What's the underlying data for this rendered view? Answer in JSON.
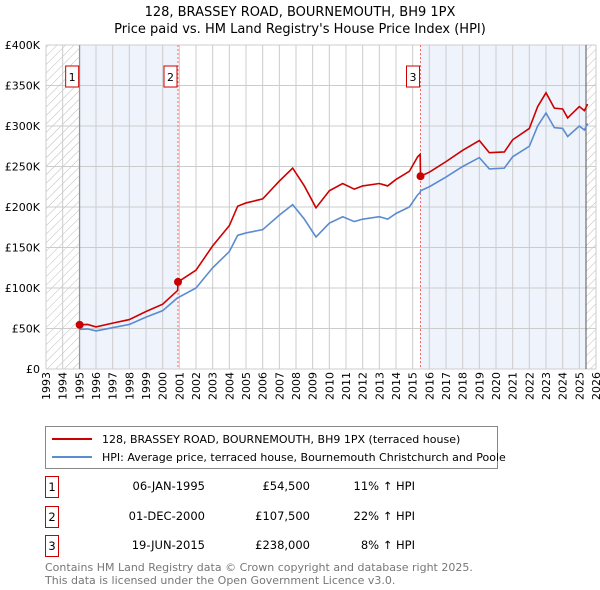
{
  "chart_data": {
    "type": "line",
    "title": "128, BRASSEY ROAD, BOURNEMOUTH, BH9 1PX",
    "subtitle": "Price paid vs. HM Land Registry's House Price Index (HPI)",
    "xlim": [
      1993,
      2026
    ],
    "ylim": [
      0,
      400000
    ],
    "y_ticks": [
      {
        "v": 0,
        "label": "£0"
      },
      {
        "v": 50000,
        "label": "£50K"
      },
      {
        "v": 100000,
        "label": "£100K"
      },
      {
        "v": 150000,
        "label": "£150K"
      },
      {
        "v": 200000,
        "label": "£200K"
      },
      {
        "v": 250000,
        "label": "£250K"
      },
      {
        "v": 300000,
        "label": "£300K"
      },
      {
        "v": 350000,
        "label": "£350K"
      },
      {
        "v": 400000,
        "label": "£400K"
      }
    ],
    "x_ticks": [
      "1993",
      "1994",
      "1995",
      "1996",
      "1997",
      "1998",
      "1999",
      "2000",
      "2001",
      "2002",
      "2003",
      "2004",
      "2005",
      "2006",
      "2007",
      "2008",
      "2009",
      "2010",
      "2011",
      "2012",
      "2013",
      "2014",
      "2015",
      "2016",
      "2017",
      "2018",
      "2019",
      "2020",
      "2021",
      "2022",
      "2023",
      "2024",
      "2025",
      "2026"
    ],
    "series": [
      {
        "name": "128, BRASSEY ROAD, BOURNEMOUTH, BH9 1PX (terraced house)",
        "color": "#cc0000",
        "x": [
          1995.02,
          1995.5,
          1996,
          1997,
          1998,
          1999,
          2000,
          2000.9,
          2000.92,
          2002,
          2003,
          2004,
          2004.5,
          2005,
          2006,
          2007,
          2007.8,
          2008.5,
          2009.2,
          2010,
          2010.8,
          2011.5,
          2012,
          2013,
          2013.5,
          2014,
          2014.8,
          2015.3,
          2015.45,
          2015.47,
          2016,
          2017,
          2018,
          2019,
          2019.6,
          2020.5,
          2021,
          2022,
          2022.5,
          2023,
          2023.5,
          2024,
          2024.3,
          2025,
          2025.3,
          2025.5
        ],
        "y": [
          54500,
          55000,
          52000,
          56600,
          61000,
          71000,
          80000,
          97000,
          107500,
          122000,
          152000,
          177000,
          201000,
          205000,
          210000,
          232000,
          248000,
          226000,
          199000,
          220000,
          229000,
          222000,
          226000,
          229000,
          226000,
          234000,
          244000,
          262000,
          265000,
          238000,
          243000,
          256000,
          270000,
          282000,
          267000,
          268000,
          283000,
          297000,
          324000,
          341000,
          322000,
          321000,
          310000,
          324000,
          319000,
          327000
        ]
      },
      {
        "name": "HPI: Average price, terraced house, Bournemouth Christchurch and Poole",
        "color": "#5b8bd0",
        "x": [
          1995.02,
          1995.5,
          1996,
          1997,
          1998,
          1999,
          2000,
          2000.9,
          2000.92,
          2002,
          2003,
          2004,
          2004.5,
          2005,
          2006,
          2007,
          2007.8,
          2008.5,
          2009.2,
          2010,
          2010.8,
          2011.5,
          2012,
          2013,
          2013.5,
          2014,
          2014.8,
          2015.3,
          2015.45,
          2015.47,
          2016,
          2017,
          2018,
          2019,
          2019.6,
          2020.5,
          2021,
          2022,
          2022.5,
          2023,
          2023.5,
          2024,
          2024.3,
          2025,
          2025.3,
          2025.5
        ],
        "y": [
          49000,
          49500,
          47000,
          51000,
          55000,
          64000,
          72000,
          88000,
          88000,
          100000,
          125000,
          145000,
          165000,
          168000,
          172000,
          190000,
          203000,
          185000,
          163000,
          180000,
          188000,
          182000,
          185000,
          188000,
          185000,
          192000,
          200000,
          215000,
          218000,
          220000,
          225000,
          237000,
          250000,
          261000,
          247000,
          248000,
          262000,
          275000,
          300000,
          316000,
          298000,
          297000,
          287000,
          300000,
          295000,
          303000
        ]
      }
    ],
    "sales": [
      {
        "n": "1",
        "x": 1995.02,
        "y": 54500,
        "date": "06-JAN-1995",
        "price": "£54,500",
        "hpi": "11% ↑ HPI"
      },
      {
        "n": "2",
        "x": 2000.92,
        "y": 107500,
        "date": "01-DEC-2000",
        "price": "£107,500",
        "hpi": "22% ↑ HPI"
      },
      {
        "n": "3",
        "x": 2015.47,
        "y": 238000,
        "date": "19-JUN-2015",
        "price": "£238,000",
        "hpi": "8% ↑ HPI"
      }
    ],
    "shaded_ranges": [
      [
        1995.02,
        2000.92
      ],
      [
        2015.47,
        2025.4
      ]
    ],
    "hatched_ranges": [
      [
        1993,
        1995.02
      ],
      [
        2025.4,
        2026
      ]
    ],
    "grid": true,
    "legend": "below"
  },
  "footer": {
    "line1": "Contains HM Land Registry data © Crown copyright and database right 2025.",
    "line2": "This data is licensed under the Open Government Licence v3.0."
  }
}
